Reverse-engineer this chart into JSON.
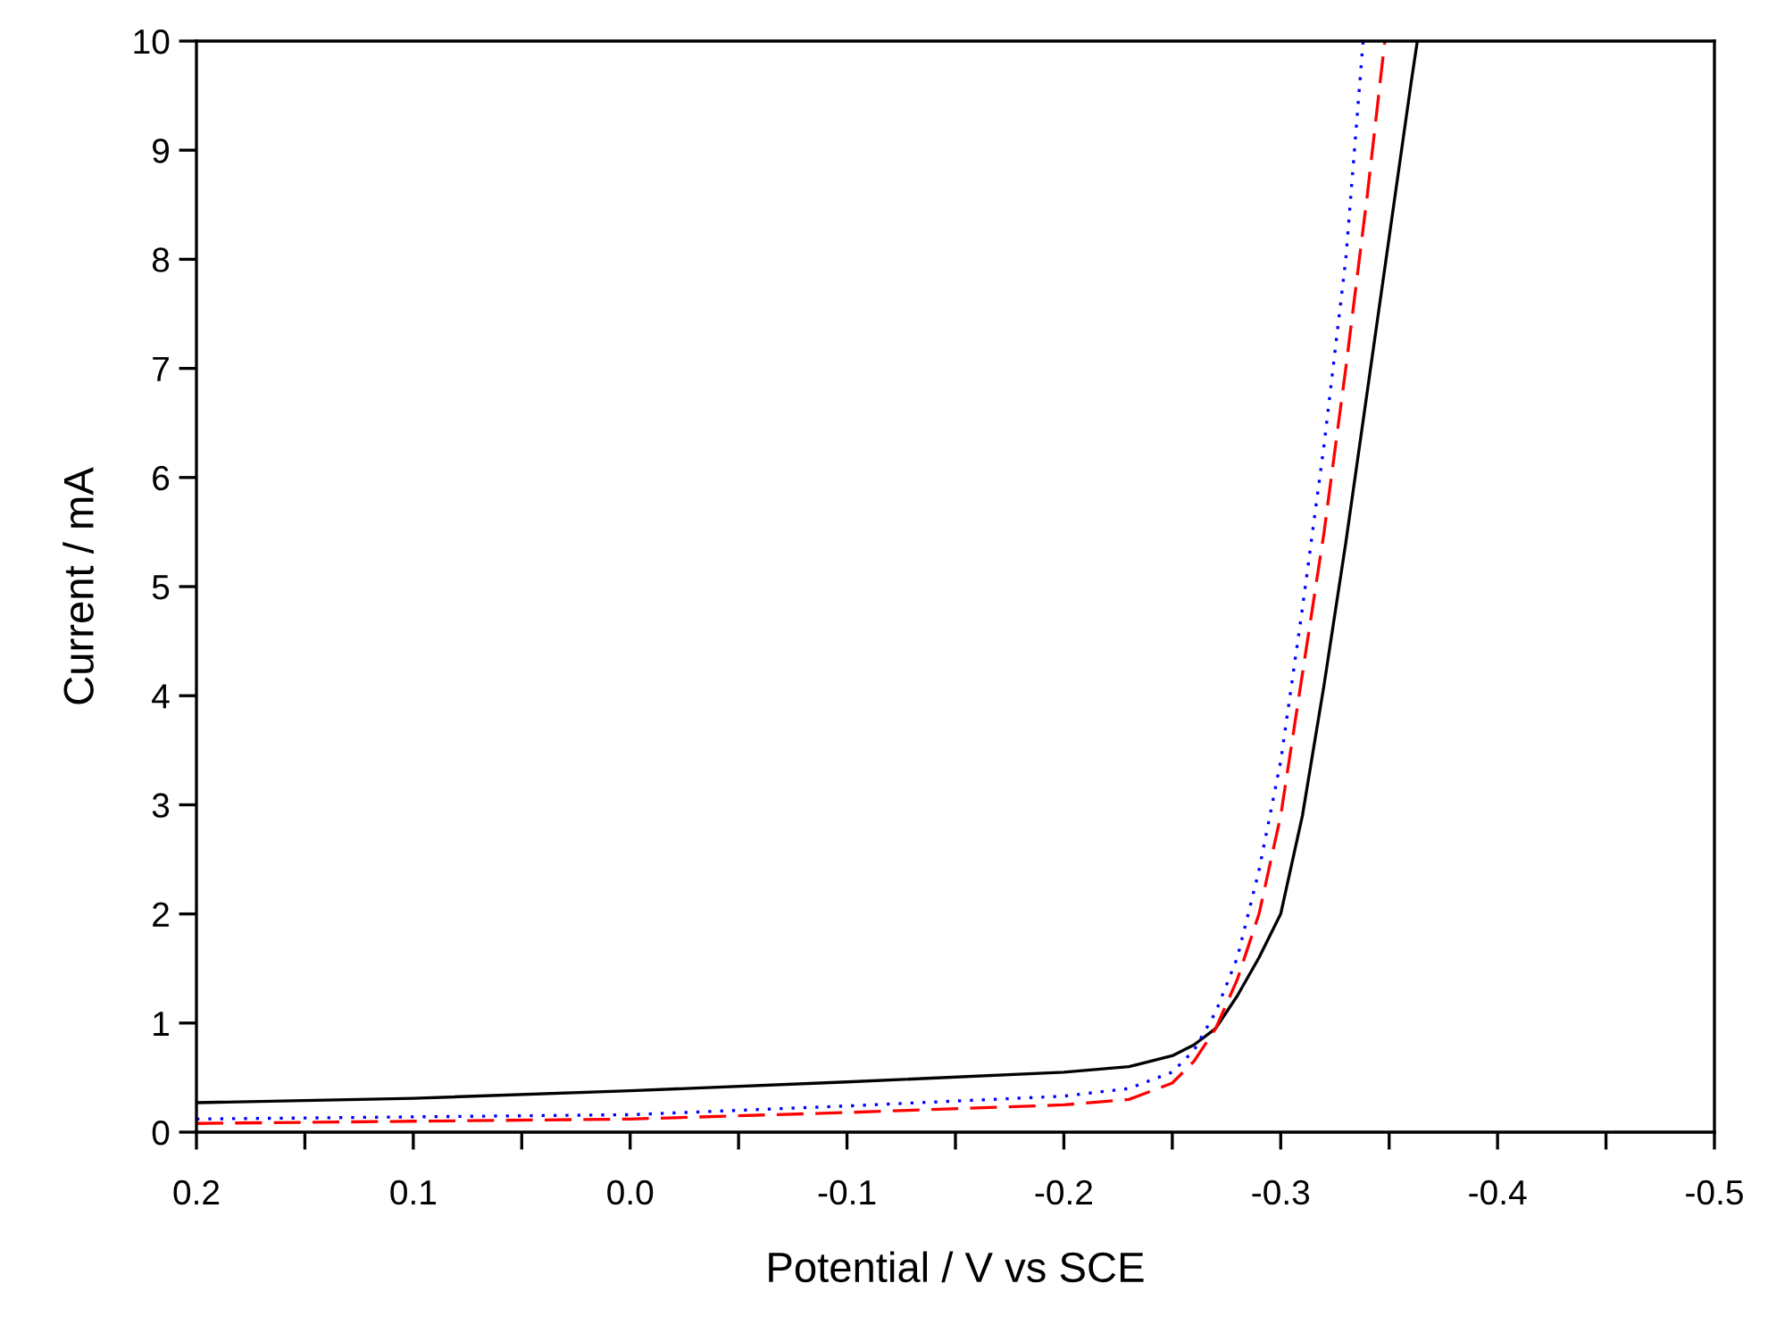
{
  "chart_data": {
    "type": "line",
    "xlabel": "Potential / V vs SCE",
    "ylabel": "Current / mA",
    "xlim": [
      0.2,
      -0.5
    ],
    "ylim": [
      0,
      10
    ],
    "xticks": [
      {
        "value": 0.2,
        "label": "0.2"
      },
      {
        "value": 0.15,
        "label": null
      },
      {
        "value": 0.1,
        "label": "0.1"
      },
      {
        "value": 0.05,
        "label": null
      },
      {
        "value": 0,
        "label": "0.0"
      },
      {
        "value": -0.05,
        "label": null
      },
      {
        "value": -0.1,
        "label": "-0.1"
      },
      {
        "value": -0.15,
        "label": null
      },
      {
        "value": -0.2,
        "label": "-0.2"
      },
      {
        "value": -0.25,
        "label": null
      },
      {
        "value": -0.3,
        "label": "-0.3"
      },
      {
        "value": -0.35,
        "label": null
      },
      {
        "value": -0.4,
        "label": "-0.4"
      },
      {
        "value": -0.45,
        "label": null
      },
      {
        "value": -0.5,
        "label": "-0.5"
      }
    ],
    "yticks": [
      0,
      1,
      2,
      3,
      4,
      5,
      6,
      7,
      8,
      9,
      10
    ],
    "marker": "none",
    "series": [
      {
        "color": "#000000",
        "line_style": "solid",
        "x": [
          0.2,
          0.1,
          0.0,
          -0.1,
          -0.2,
          -0.23,
          -0.25,
          -0.26,
          -0.27,
          -0.28,
          -0.29,
          -0.3,
          -0.31,
          -0.32,
          -0.33,
          -0.34,
          -0.35,
          -0.36,
          -0.363
        ],
        "values": [
          0.27,
          0.31,
          0.38,
          0.46,
          0.55,
          0.6,
          0.7,
          0.8,
          0.95,
          1.25,
          1.6,
          2.0,
          2.9,
          4.1,
          5.4,
          6.8,
          8.2,
          9.6,
          10
        ]
      },
      {
        "color": "#ff0000",
        "line_style": "dashed",
        "x": [
          0.2,
          0.1,
          0.0,
          -0.1,
          -0.2,
          -0.23,
          -0.25,
          -0.26,
          -0.27,
          -0.28,
          -0.29,
          -0.3,
          -0.31,
          -0.32,
          -0.33,
          -0.34,
          -0.348
        ],
        "values": [
          0.08,
          0.1,
          0.12,
          0.18,
          0.25,
          0.3,
          0.45,
          0.65,
          0.95,
          1.4,
          2.0,
          2.9,
          4.2,
          5.5,
          7.0,
          8.6,
          10
        ]
      },
      {
        "color": "#0000ff",
        "line_style": "dotted",
        "x": [
          0.2,
          0.1,
          0.0,
          -0.1,
          -0.2,
          -0.23,
          -0.25,
          -0.26,
          -0.27,
          -0.28,
          -0.29,
          -0.3,
          -0.31,
          -0.32,
          -0.33,
          -0.338
        ],
        "values": [
          0.12,
          0.14,
          0.16,
          0.24,
          0.33,
          0.4,
          0.55,
          0.75,
          1.1,
          1.6,
          2.4,
          3.4,
          4.8,
          6.3,
          8.0,
          10
        ]
      }
    ]
  }
}
